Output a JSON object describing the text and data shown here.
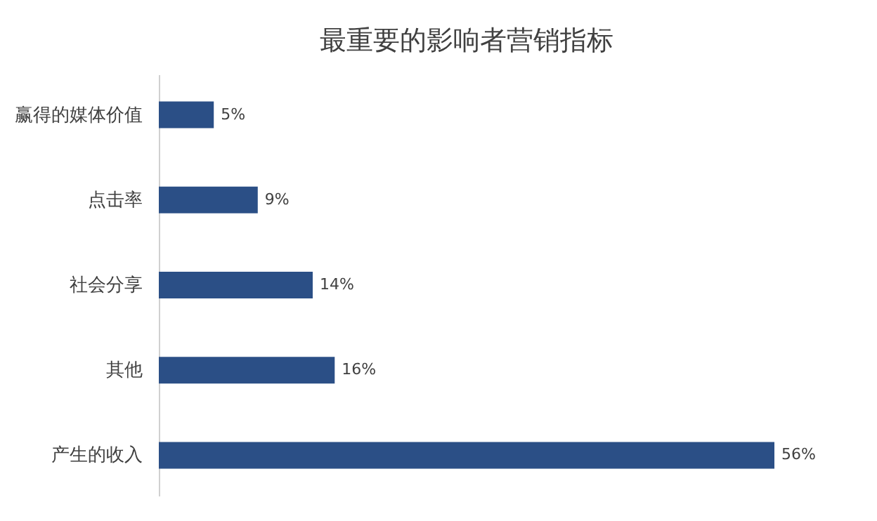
{
  "chart_data": {
    "type": "bar",
    "orientation": "horizontal",
    "title": "最重要的影响者营销指标",
    "categories": [
      "赢得的媒体价值",
      "点击率",
      "社会分享",
      "其他",
      "产生的收入"
    ],
    "values": [
      5,
      9,
      14,
      16,
      56
    ],
    "value_labels": [
      "5%",
      "9%",
      "14%",
      "16%",
      "56%"
    ],
    "color": "#2b4f86",
    "grid": false
  }
}
